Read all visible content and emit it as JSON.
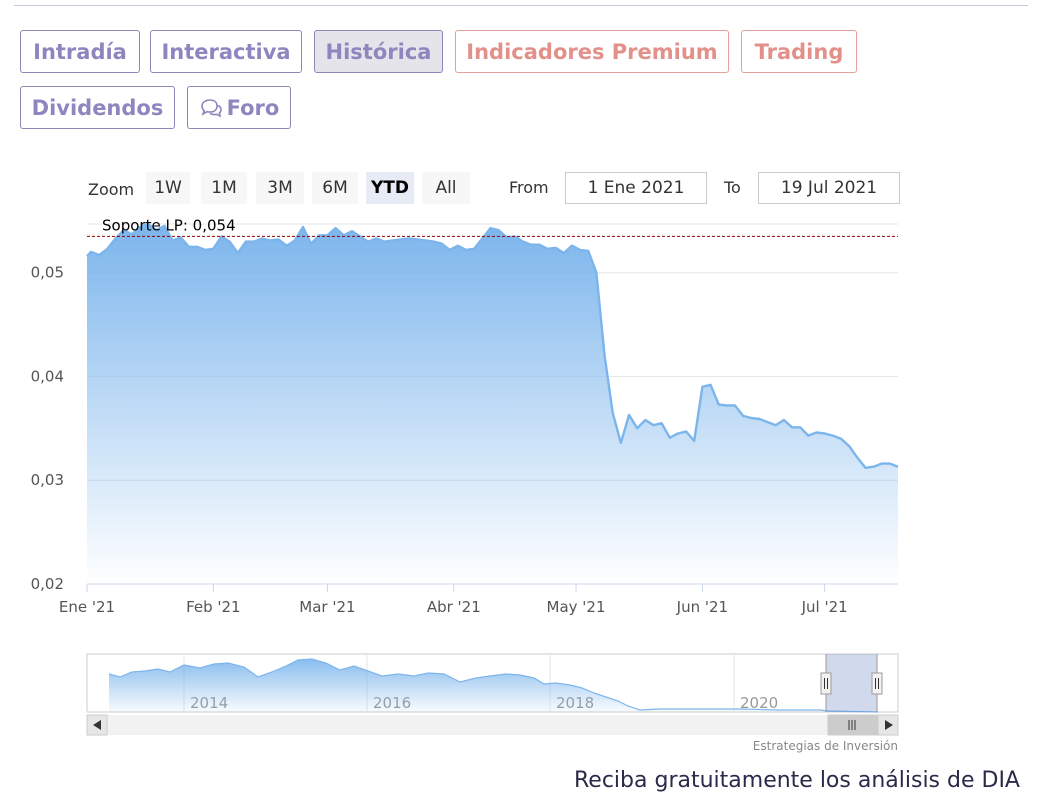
{
  "tabs": [
    {
      "label": "Intradía",
      "active": false,
      "premium": false
    },
    {
      "label": "Interactiva",
      "active": false,
      "premium": false
    },
    {
      "label": "Histórica",
      "active": true,
      "premium": false
    },
    {
      "label": "Indicadores Premium",
      "active": false,
      "premium": true
    },
    {
      "label": "Trading",
      "active": false,
      "premium": true
    },
    {
      "label": "Dividendos",
      "active": false,
      "premium": false
    },
    {
      "label": "Foro",
      "active": false,
      "premium": false,
      "icon": "speech-bubbles-icon"
    }
  ],
  "range_selector": {
    "zoom_label": "Zoom",
    "buttons": [
      "1W",
      "1M",
      "3M",
      "6M",
      "YTD",
      "All"
    ],
    "selected": "YTD",
    "from_label": "From",
    "from_value": "1 Ene 2021",
    "to_label": "To",
    "to_value": "19 Jul 2021"
  },
  "chart_data": {
    "type": "area",
    "x_axis_labels": [
      "Ene '21",
      "Feb '21",
      "Mar '21",
      "Abr '21",
      "May '21",
      "Jun '21",
      "Jul '21"
    ],
    "y_axis_labels": [
      "0,05",
      "0,04",
      "0,03",
      "0,02"
    ],
    "ylim": [
      0.02,
      0.0545
    ],
    "xlim": [
      "2021-01-01",
      "2021-07-19"
    ],
    "plot_line": {
      "label": "Soporte LP: 0,054",
      "value": 0.0535,
      "color": "#8b0000"
    },
    "series": [
      {
        "color": "#7cb5ec",
        "points": [
          [
            "2021-01-01",
            0.0516
          ],
          [
            "2021-01-02",
            0.052
          ],
          [
            "2021-01-04",
            0.0517
          ],
          [
            "2021-01-06",
            0.0523
          ],
          [
            "2021-01-08",
            0.0533
          ],
          [
            "2021-01-10",
            0.0541
          ],
          [
            "2021-01-12",
            0.0537
          ],
          [
            "2021-01-14",
            0.0544
          ],
          [
            "2021-01-16",
            0.0547
          ],
          [
            "2021-01-18",
            0.0541
          ],
          [
            "2021-01-20",
            0.0545
          ],
          [
            "2021-01-22",
            0.0531
          ],
          [
            "2021-01-24",
            0.0534
          ],
          [
            "2021-01-26",
            0.0525
          ],
          [
            "2021-01-28",
            0.0525
          ],
          [
            "2021-01-30",
            0.0522
          ],
          [
            "2021-02-01",
            0.0523
          ],
          [
            "2021-02-03",
            0.0535
          ],
          [
            "2021-02-05",
            0.053
          ],
          [
            "2021-02-07",
            0.0519
          ],
          [
            "2021-02-09",
            0.053
          ],
          [
            "2021-02-11",
            0.053
          ],
          [
            "2021-02-13",
            0.0533
          ],
          [
            "2021-02-15",
            0.0531
          ],
          [
            "2021-02-17",
            0.0532
          ],
          [
            "2021-02-19",
            0.0526
          ],
          [
            "2021-02-21",
            0.0531
          ],
          [
            "2021-02-23",
            0.0544
          ],
          [
            "2021-02-25",
            0.0528
          ],
          [
            "2021-02-27",
            0.0536
          ],
          [
            "2021-03-01",
            0.0536
          ],
          [
            "2021-03-03",
            0.0543
          ],
          [
            "2021-03-05",
            0.0536
          ],
          [
            "2021-03-07",
            0.054
          ],
          [
            "2021-03-09",
            0.0535
          ],
          [
            "2021-03-11",
            0.053
          ],
          [
            "2021-03-13",
            0.0533
          ],
          [
            "2021-03-15",
            0.053
          ],
          [
            "2021-03-17",
            0.0531
          ],
          [
            "2021-03-19",
            0.0532
          ],
          [
            "2021-03-21",
            0.0533
          ],
          [
            "2021-03-23",
            0.0532
          ],
          [
            "2021-03-25",
            0.0531
          ],
          [
            "2021-03-27",
            0.053
          ],
          [
            "2021-03-29",
            0.0528
          ],
          [
            "2021-03-31",
            0.0522
          ],
          [
            "2021-04-02",
            0.0526
          ],
          [
            "2021-04-04",
            0.0522
          ],
          [
            "2021-04-06",
            0.0523
          ],
          [
            "2021-04-08",
            0.0533
          ],
          [
            "2021-04-10",
            0.0543
          ],
          [
            "2021-04-12",
            0.0541
          ],
          [
            "2021-04-14",
            0.0534
          ],
          [
            "2021-04-16",
            0.0535
          ],
          [
            "2021-04-18",
            0.053
          ],
          [
            "2021-04-20",
            0.0527
          ],
          [
            "2021-04-22",
            0.0527
          ],
          [
            "2021-04-24",
            0.0523
          ],
          [
            "2021-04-26",
            0.0524
          ],
          [
            "2021-04-28",
            0.0519
          ],
          [
            "2021-04-30",
            0.0526
          ],
          [
            "2021-05-02",
            0.0522
          ],
          [
            "2021-05-04",
            0.0521
          ],
          [
            "2021-05-06",
            0.05
          ],
          [
            "2021-05-08",
            0.042
          ],
          [
            "2021-05-10",
            0.0365
          ],
          [
            "2021-05-12",
            0.0336
          ],
          [
            "2021-05-14",
            0.0363
          ],
          [
            "2021-05-16",
            0.035
          ],
          [
            "2021-05-18",
            0.0358
          ],
          [
            "2021-05-20",
            0.0353
          ],
          [
            "2021-05-22",
            0.0355
          ],
          [
            "2021-05-24",
            0.0341
          ],
          [
            "2021-05-26",
            0.0345
          ],
          [
            "2021-05-28",
            0.0347
          ],
          [
            "2021-05-30",
            0.0338
          ],
          [
            "2021-06-01",
            0.039
          ],
          [
            "2021-06-03",
            0.0392
          ],
          [
            "2021-06-05",
            0.0373
          ],
          [
            "2021-06-07",
            0.0372
          ],
          [
            "2021-06-09",
            0.0372
          ],
          [
            "2021-06-11",
            0.0362
          ],
          [
            "2021-06-13",
            0.036
          ],
          [
            "2021-06-15",
            0.0359
          ],
          [
            "2021-06-17",
            0.0356
          ],
          [
            "2021-06-19",
            0.0353
          ],
          [
            "2021-06-21",
            0.0358
          ],
          [
            "2021-06-23",
            0.0351
          ],
          [
            "2021-06-25",
            0.0351
          ],
          [
            "2021-06-27",
            0.0343
          ],
          [
            "2021-06-29",
            0.0346
          ],
          [
            "2021-07-01",
            0.0345
          ],
          [
            "2021-07-03",
            0.0343
          ],
          [
            "2021-07-05",
            0.034
          ],
          [
            "2021-07-07",
            0.0333
          ],
          [
            "2021-07-09",
            0.0322
          ],
          [
            "2021-07-11",
            0.0312
          ],
          [
            "2021-07-13",
            0.0313
          ],
          [
            "2021-07-15",
            0.0316
          ],
          [
            "2021-07-17",
            0.0316
          ],
          [
            "2021-07-19",
            0.0313
          ]
        ]
      }
    ]
  },
  "navigator": {
    "year_labels": [
      "2014",
      "2016",
      "2018",
      "2020"
    ]
  },
  "credit": "Estrategias de Inversión",
  "footer_text": "Reciba gratuitamente los análisis de DIA"
}
